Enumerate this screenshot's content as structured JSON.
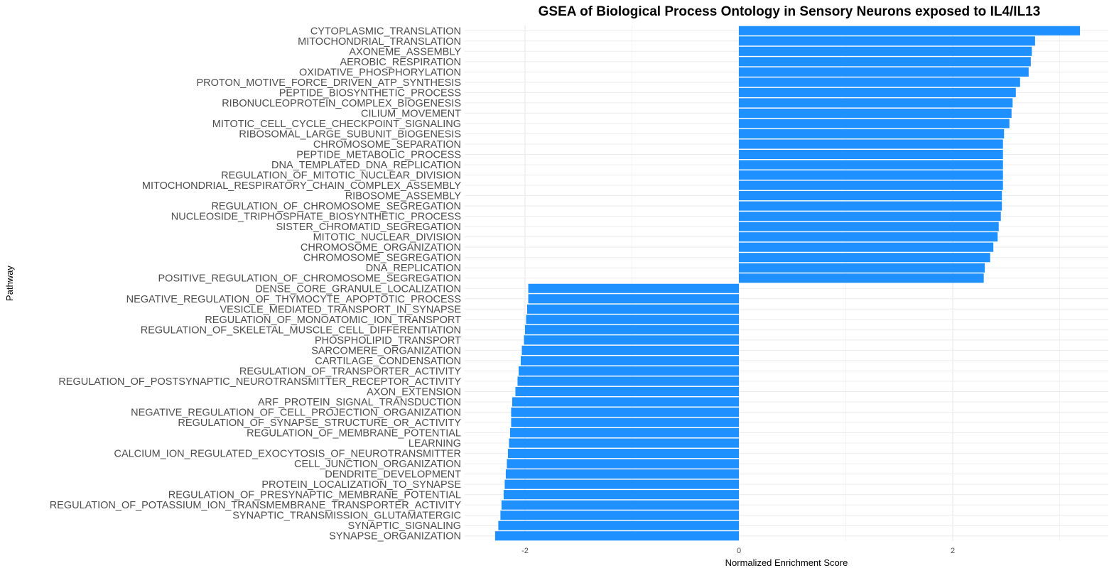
{
  "chart_data": {
    "type": "bar",
    "orientation": "horizontal",
    "title": "GSEA of Biological Process Ontology in Sensory Neurons exposed to IL4/IL13",
    "xlabel": "Normalized Enrichment Score",
    "ylabel": "Pathway",
    "xticks": [
      "-2",
      "0",
      "2"
    ],
    "xlim": [
      -2.28,
      3.2
    ],
    "grid": true,
    "bar_color": "#1E90FF",
    "categories": [
      "CYTOPLASMIC_TRANSLATION",
      "MITOCHONDRIAL_TRANSLATION",
      "AXONEME_ASSEMBLY",
      "AEROBIC_RESPIRATION",
      "OXIDATIVE_PHOSPHORYLATION",
      "PROTON_MOTIVE_FORCE_DRIVEN_ATP_SYNTHESIS",
      "PEPTIDE_BIOSYNTHETIC_PROCESS",
      "RIBONUCLEOPROTEIN_COMPLEX_BIOGENESIS",
      "CILIUM_MOVEMENT",
      "MITOTIC_CELL_CYCLE_CHECKPOINT_SIGNALING",
      "RIBOSOMAL_LARGE_SUBUNIT_BIOGENESIS",
      "CHROMOSOME_SEPARATION",
      "PEPTIDE_METABOLIC_PROCESS",
      "DNA_TEMPLATED_DNA_REPLICATION",
      "REGULATION_OF_MITOTIC_NUCLEAR_DIVISION",
      "MITOCHONDRIAL_RESPIRATORY_CHAIN_COMPLEX_ASSEMBLY",
      "RIBOSOME_ASSEMBLY",
      "REGULATION_OF_CHROMOSOME_SEGREGATION",
      "NUCLEOSIDE_TRIPHOSPHATE_BIOSYNTHETIC_PROCESS",
      "SISTER_CHROMATID_SEGREGATION",
      "MITOTIC_NUCLEAR_DIVISION",
      "CHROMOSOME_ORGANIZATION",
      "CHROMOSOME_SEGREGATION",
      "DNA_REPLICATION",
      "POSITIVE_REGULATION_OF_CHROMOSOME_SEGREGATION",
      "DENSE_CORE_GRANULE_LOCALIZATION",
      "NEGATIVE_REGULATION_OF_THYMOCYTE_APOPTOTIC_PROCESS",
      "VESICLE_MEDIATED_TRANSPORT_IN_SYNAPSE",
      "REGULATION_OF_MONOATOMIC_ION_TRANSPORT",
      "REGULATION_OF_SKELETAL_MUSCLE_CELL_DIFFERENTIATION",
      "PHOSPHOLIPID_TRANSPORT",
      "SARCOMERE_ORGANIZATION",
      "CARTILAGE_CONDENSATION",
      "REGULATION_OF_TRANSPORTER_ACTIVITY",
      "REGULATION_OF_POSTSYNAPTIC_NEUROTRANSMITTER_RECEPTOR_ACTIVITY",
      "AXON_EXTENSION",
      "ARF_PROTEIN_SIGNAL_TRANSDUCTION",
      "NEGATIVE_REGULATION_OF_CELL_PROJECTION_ORGANIZATION",
      "REGULATION_OF_SYNAPSE_STRUCTURE_OR_ACTIVITY",
      "REGULATION_OF_MEMBRANE_POTENTIAL",
      "LEARNING",
      "CALCIUM_ION_REGULATED_EXOCYTOSIS_OF_NEUROTRANSMITTER",
      "CELL_JUNCTION_ORGANIZATION",
      "DENDRITE_DEVELOPMENT",
      "PROTEIN_LOCALIZATION_TO_SYNAPSE",
      "REGULATION_OF_PRESYNAPTIC_MEMBRANE_POTENTIAL",
      "REGULATION_OF_POTASSIUM_ION_TRANSMEMBRANE_TRANSPORTER_ACTIVITY",
      "SYNAPTIC_TRANSMISSION_GLUTAMATERGIC",
      "SYNAPTIC_SIGNALING",
      "SYNAPSE_ORGANIZATION"
    ],
    "values": [
      3.19,
      2.77,
      2.74,
      2.73,
      2.71,
      2.63,
      2.59,
      2.56,
      2.55,
      2.53,
      2.48,
      2.47,
      2.47,
      2.47,
      2.47,
      2.47,
      2.46,
      2.46,
      2.45,
      2.43,
      2.42,
      2.38,
      2.35,
      2.3,
      2.29,
      -1.97,
      -1.97,
      -1.98,
      -1.99,
      -2.0,
      -2.01,
      -2.03,
      -2.04,
      -2.06,
      -2.07,
      -2.09,
      -2.12,
      -2.13,
      -2.13,
      -2.14,
      -2.15,
      -2.16,
      -2.17,
      -2.18,
      -2.19,
      -2.2,
      -2.22,
      -2.23,
      -2.25,
      -2.28
    ]
  }
}
